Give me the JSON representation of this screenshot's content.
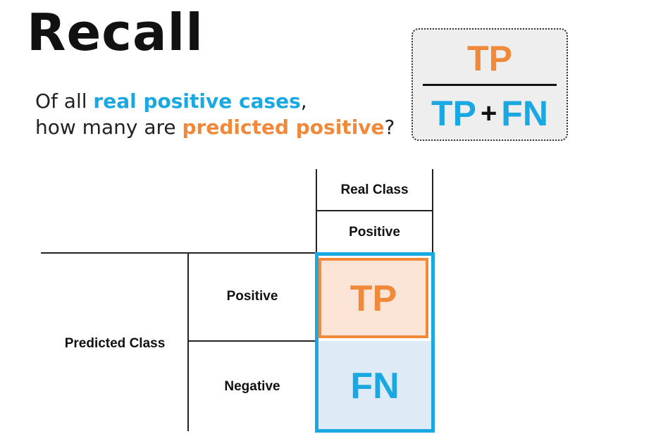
{
  "title": "Recall",
  "question": {
    "line1_prefix": "Of all ",
    "line1_highlight": "real positive cases",
    "line1_suffix": ",",
    "line2_prefix": "how many are ",
    "line2_highlight": "predicted positive",
    "line2_suffix": "?"
  },
  "formula": {
    "numerator": "TP",
    "denominator_left": "TP",
    "operator": "+",
    "denominator_right": "FN"
  },
  "matrix": {
    "column_header": "Real Class",
    "column_value": "Positive",
    "row_header": "Predicted Class",
    "row_values": [
      "Positive",
      "Negative"
    ],
    "cells": [
      "TP",
      "FN"
    ]
  },
  "colors": {
    "blue": "#1aa8e3",
    "orange": "#f08a3a",
    "tp_fill": "#fce4d6",
    "fn_fill": "#deeaf6"
  }
}
